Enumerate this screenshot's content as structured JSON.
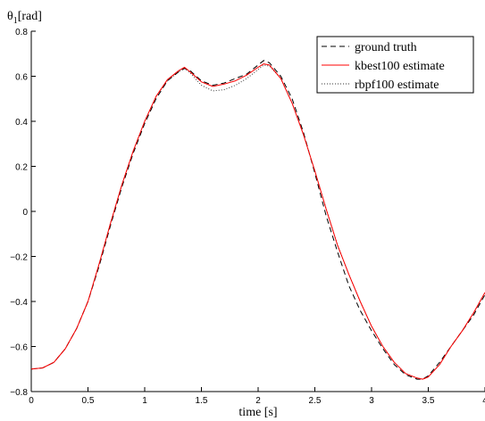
{
  "chart_data": {
    "type": "line",
    "xlabel": "time [s]",
    "ylabel": "θ1[rad]",
    "ylabel_main": "θ",
    "ylabel_sub": "1",
    "ylabel_unit": "[rad]",
    "xlim": [
      0,
      4
    ],
    "ylim": [
      -0.8,
      0.8
    ],
    "xticks": [
      0,
      0.5,
      1,
      1.5,
      2,
      2.5,
      3,
      3.5,
      4
    ],
    "xtick_labels": [
      "0",
      "0.5",
      "1",
      "1.5",
      "2",
      "2.5",
      "3",
      "3.5",
      "4"
    ],
    "yticks": [
      -0.8,
      -0.6,
      -0.4,
      -0.2,
      0,
      0.2,
      0.4,
      0.6,
      0.8
    ],
    "ytick_labels": [
      "−0.8",
      "−0.6",
      "−0.4",
      "−0.2",
      "0",
      "0.2",
      "0.4",
      "0.6",
      "0.8"
    ],
    "grid": false,
    "legend_position": "top-right",
    "series": [
      {
        "name": "ground truth",
        "color": "#000000",
        "style": "dashed",
        "x": [
          0,
          0.1,
          0.2,
          0.3,
          0.4,
          0.5,
          0.6,
          0.7,
          0.8,
          0.9,
          1.0,
          1.1,
          1.2,
          1.3,
          1.35,
          1.4,
          1.5,
          1.6,
          1.7,
          1.8,
          1.9,
          2.0,
          2.05,
          2.1,
          2.2,
          2.3,
          2.4,
          2.5,
          2.6,
          2.7,
          2.8,
          2.9,
          3.0,
          3.1,
          3.2,
          3.3,
          3.4,
          3.45,
          3.5,
          3.6,
          3.7,
          3.8,
          3.9,
          4.0
        ],
        "y": [
          -0.7,
          -0.695,
          -0.67,
          -0.61,
          -0.52,
          -0.4,
          -0.24,
          -0.06,
          0.11,
          0.26,
          0.39,
          0.5,
          0.58,
          0.62,
          0.635,
          0.625,
          0.58,
          0.56,
          0.57,
          0.59,
          0.61,
          0.65,
          0.67,
          0.66,
          0.6,
          0.5,
          0.35,
          0.17,
          -0.02,
          -0.18,
          -0.33,
          -0.44,
          -0.53,
          -0.61,
          -0.68,
          -0.725,
          -0.745,
          -0.745,
          -0.73,
          -0.67,
          -0.6,
          -0.53,
          -0.46,
          -0.37
        ]
      },
      {
        "name": "kbest100 estimate",
        "color": "#ff0000",
        "style": "solid",
        "x": [
          0,
          0.1,
          0.2,
          0.3,
          0.4,
          0.5,
          0.6,
          0.7,
          0.8,
          0.9,
          1.0,
          1.1,
          1.2,
          1.3,
          1.35,
          1.4,
          1.5,
          1.6,
          1.7,
          1.8,
          1.9,
          2.0,
          2.05,
          2.1,
          2.2,
          2.3,
          2.4,
          2.5,
          2.6,
          2.7,
          2.8,
          2.9,
          3.0,
          3.1,
          3.2,
          3.3,
          3.4,
          3.45,
          3.5,
          3.6,
          3.7,
          3.8,
          3.9,
          4.0
        ],
        "y": [
          -0.7,
          -0.695,
          -0.67,
          -0.61,
          -0.52,
          -0.4,
          -0.23,
          -0.05,
          0.12,
          0.27,
          0.4,
          0.51,
          0.585,
          0.625,
          0.64,
          0.62,
          0.575,
          0.555,
          0.565,
          0.58,
          0.605,
          0.64,
          0.655,
          0.65,
          0.59,
          0.48,
          0.34,
          0.18,
          0.01,
          -0.15,
          -0.28,
          -0.4,
          -0.51,
          -0.6,
          -0.67,
          -0.72,
          -0.74,
          -0.745,
          -0.735,
          -0.68,
          -0.6,
          -0.53,
          -0.45,
          -0.36
        ]
      },
      {
        "name": "rbpf100 estimate",
        "color": "#333333",
        "style": "dotted",
        "x": [
          0,
          0.1,
          0.2,
          0.3,
          0.4,
          0.5,
          0.6,
          0.7,
          0.8,
          0.9,
          1.0,
          1.1,
          1.2,
          1.3,
          1.35,
          1.4,
          1.5,
          1.6,
          1.7,
          1.8,
          1.9,
          2.0,
          2.05,
          2.1,
          2.2,
          2.3,
          2.4,
          2.5,
          2.6,
          2.7,
          2.8,
          2.9,
          3.0,
          3.1,
          3.2,
          3.3,
          3.4,
          3.45,
          3.5,
          3.6,
          3.7,
          3.8,
          3.9,
          4.0
        ],
        "y": [
          -0.7,
          -0.695,
          -0.67,
          -0.61,
          -0.52,
          -0.4,
          -0.23,
          -0.05,
          0.12,
          0.27,
          0.4,
          0.51,
          0.58,
          0.62,
          0.635,
          0.615,
          0.56,
          0.535,
          0.54,
          0.56,
          0.59,
          0.63,
          0.65,
          0.645,
          0.59,
          0.48,
          0.34,
          0.18,
          0.01,
          -0.15,
          -0.28,
          -0.4,
          -0.51,
          -0.6,
          -0.67,
          -0.72,
          -0.74,
          -0.745,
          -0.735,
          -0.68,
          -0.6,
          -0.53,
          -0.45,
          -0.36
        ]
      }
    ]
  }
}
